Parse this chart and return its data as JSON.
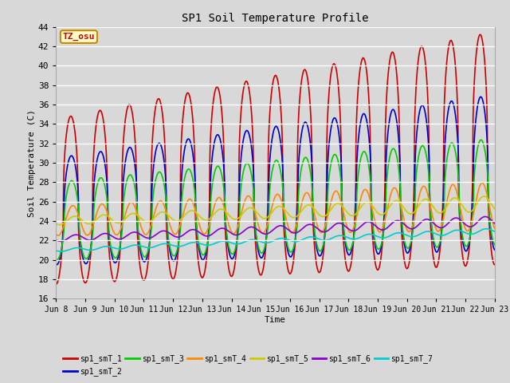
{
  "title": "SP1 Soil Temperature Profile",
  "xlabel": "Time",
  "ylabel": "Soil Temperature (C)",
  "ylim": [
    16,
    44
  ],
  "series": {
    "sp1_smT_1": {
      "color": "#cc0000",
      "linewidth": 1.2
    },
    "sp1_smT_2": {
      "color": "#0000cc",
      "linewidth": 1.2
    },
    "sp1_smT_3": {
      "color": "#00cc00",
      "linewidth": 1.2
    },
    "sp1_smT_4": {
      "color": "#ff8800",
      "linewidth": 1.2
    },
    "sp1_smT_5": {
      "color": "#cccc00",
      "linewidth": 1.2
    },
    "sp1_smT_6": {
      "color": "#8800cc",
      "linewidth": 1.2
    },
    "sp1_smT_7": {
      "color": "#00cccc",
      "linewidth": 1.2
    }
  },
  "legend_labels": [
    "sp1_smT_1",
    "sp1_smT_2",
    "sp1_smT_3",
    "sp1_smT_4",
    "sp1_smT_5",
    "sp1_smT_6",
    "sp1_smT_7"
  ],
  "bg_color": "#d8d8d8",
  "axes_bg_color": "#d8d8d8",
  "annotation_text": "TZ_osu",
  "annotation_color": "#cc0000",
  "annotation_bg": "#ffffcc",
  "annotation_border": "#cc8800",
  "grid_color": "white",
  "xtick_labels": [
    "Jun 8",
    "Jun 9",
    "Jun 10",
    "Jun 11",
    "Jun 12",
    "Jun 13",
    "Jun 14",
    "Jun 15",
    "Jun 16",
    "Jun 17",
    "Jun 18",
    "Jun 19",
    "Jun 20",
    "Jun 21",
    "Jun 22",
    "Jun 23"
  ],
  "n_days": 15
}
